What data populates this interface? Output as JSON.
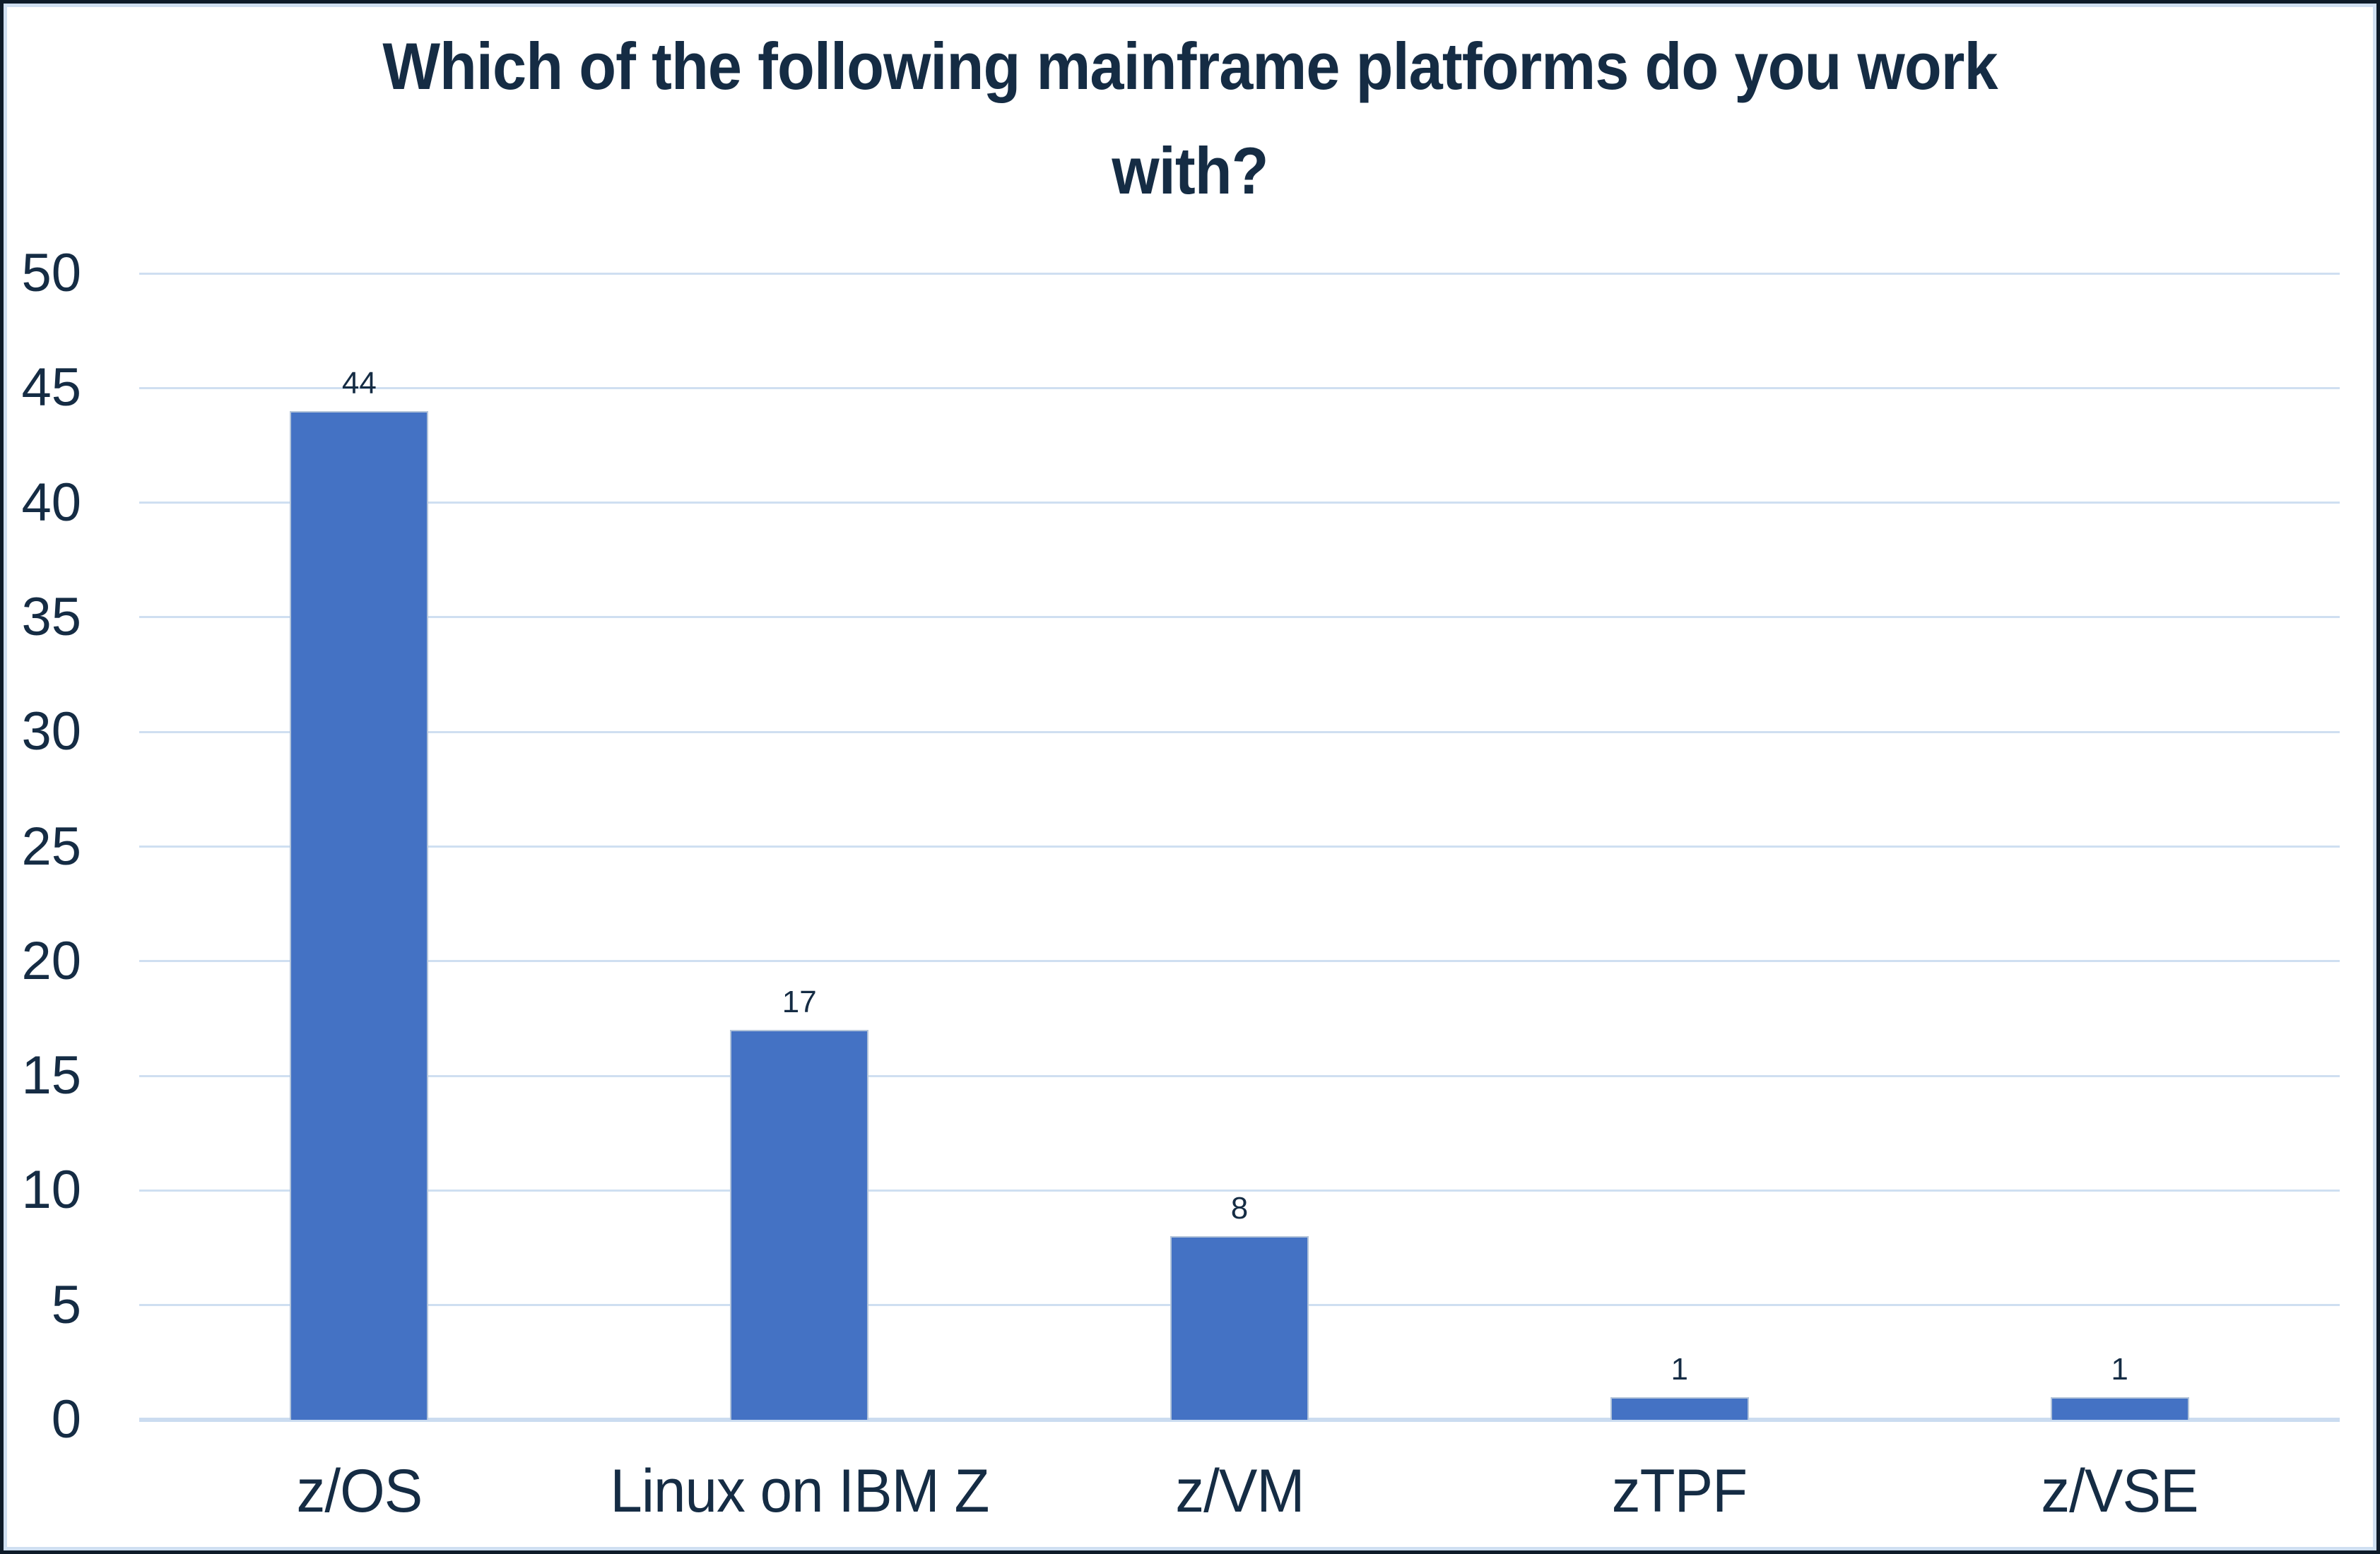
{
  "header": {
    "title_display": "Which of the following mainframe platforms do you work\nwith?"
  },
  "chart_data": {
    "type": "bar",
    "title": "Which of the following mainframe platforms do you work with?",
    "categories": [
      "z/OS",
      "Linux on IBM Z",
      "z/VM",
      "zTPF",
      "z/VSE"
    ],
    "values": [
      44,
      17,
      8,
      1,
      1
    ],
    "data_labels": [
      "44",
      "17",
      "8",
      "1",
      "1"
    ],
    "xlabel": "",
    "ylabel": "",
    "ylim": [
      0,
      50
    ],
    "ytick_step": 5,
    "yticks": [
      "0",
      "5",
      "10",
      "15",
      "20",
      "25",
      "30",
      "35",
      "40",
      "45",
      "50"
    ],
    "grid": "horizontal-on",
    "legend": "none",
    "colors": {
      "bar_fill": "#4472c4",
      "bar_border": "#b3c4d9",
      "gridline": "#cfdff1",
      "text": "#152c44",
      "frame_outer": "#0e1b29",
      "frame_inner": "#cfdff1",
      "background": "#ffffff"
    }
  }
}
